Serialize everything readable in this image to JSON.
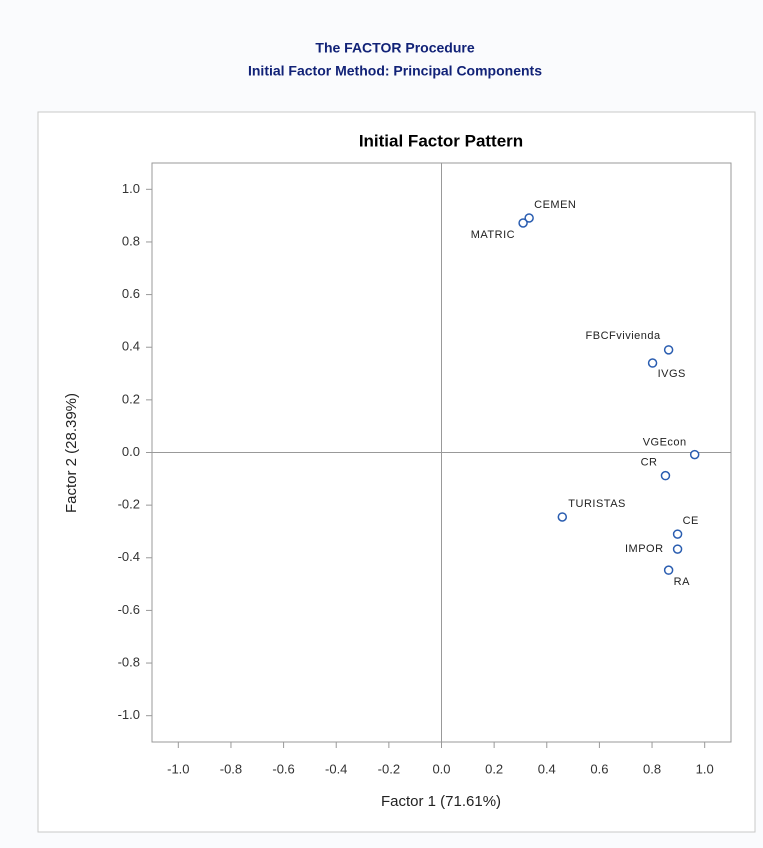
{
  "header": {
    "title": "The FACTOR Procedure",
    "subtitle": "Initial Factor Method: Principal Components"
  },
  "chart_data": {
    "type": "scatter",
    "title": "Initial Factor Pattern",
    "x_label": "Factor 1 (71.61%)",
    "y_label": "Factor 2 (28.39%)",
    "labels": [
      "CEMEN",
      "MATRIC",
      "FBCFvivienda",
      "IVGS",
      "VGEcon",
      "CR",
      "TURISTAS",
      "CE",
      "IMPOR",
      "RA"
    ],
    "x": [
      0.333,
      0.31,
      0.863,
      0.802,
      0.962,
      0.851,
      0.459,
      0.897,
      0.897,
      0.863
    ],
    "values": [
      0.891,
      0.872,
      0.39,
      0.34,
      -0.008,
      -0.088,
      -0.245,
      -0.31,
      -0.367,
      -0.447
    ],
    "color": "#2a5db0",
    "xlim": [
      -1.1,
      1.1
    ],
    "ylim": [
      -1.1,
      1.1
    ],
    "xticks": [
      {
        "value": -1,
        "label": "-1.0"
      },
      -0.8,
      -0.6,
      -0.4,
      -0.2,
      {
        "value": 0,
        "label": "0.0"
      },
      0.2,
      0.4,
      0.6,
      0.8,
      {
        "value": 1,
        "label": "1.0"
      }
    ],
    "yticks": [
      {
        "value": -1,
        "label": "-1.0"
      },
      -0.8,
      -0.6,
      -0.4,
      -0.2,
      {
        "value": 0,
        "label": "0.0"
      },
      0.2,
      0.4,
      0.6,
      0.8,
      {
        "value": 1,
        "label": "1.0"
      }
    ],
    "reference_lines": true
  }
}
